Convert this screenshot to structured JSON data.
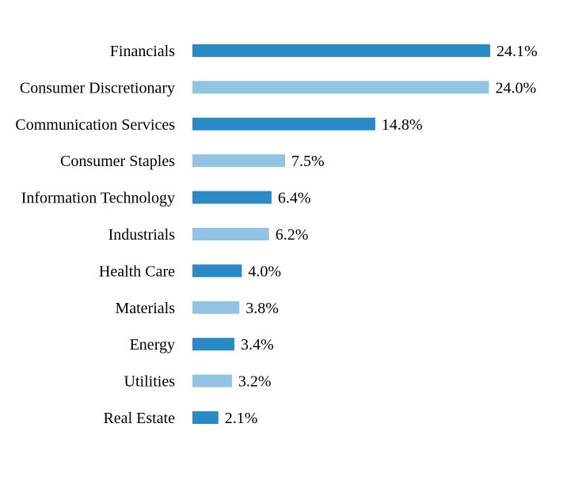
{
  "chart_data": {
    "type": "bar",
    "orientation": "horizontal",
    "categories": [
      "Financials",
      "Consumer Discretionary",
      "Communication Services",
      "Consumer Staples",
      "Information Technology",
      "Industrials",
      "Health Care",
      "Materials",
      "Energy",
      "Utilities",
      "Real Estate"
    ],
    "values": [
      24.1,
      24.0,
      14.8,
      7.5,
      6.4,
      6.2,
      4.0,
      3.8,
      3.4,
      3.2,
      2.1
    ],
    "value_labels": [
      "24.1%",
      "24.0%",
      "14.8%",
      "7.5%",
      "6.4%",
      "6.2%",
      "4.0%",
      "3.8%",
      "3.4%",
      "3.2%",
      "2.1%"
    ],
    "xlim": [
      0,
      24.1
    ],
    "grid": false,
    "legend": "none",
    "colors": [
      "#2a8ac8",
      "#93c3e2"
    ]
  }
}
